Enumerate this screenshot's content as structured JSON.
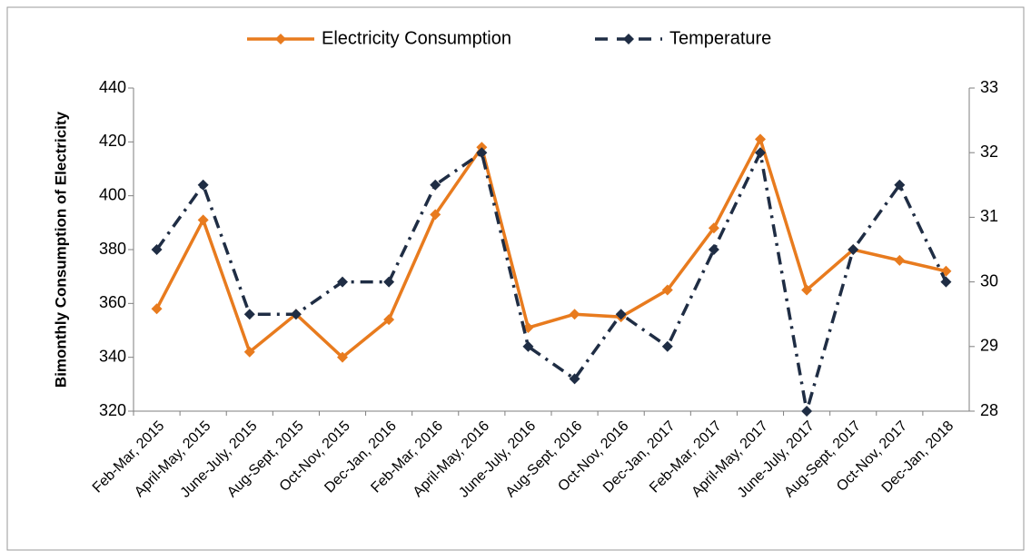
{
  "chart_data": {
    "type": "line",
    "y_label": "Bimonthly Consumption of Electricity",
    "categories": [
      "Feb-Mar, 2015",
      "April-May, 2015",
      "June-July, 2015",
      "Aug-Sept, 2015",
      "Oct-Nov, 2015",
      "Dec-Jan, 2016",
      "Feb-Mar, 2016",
      "April-May, 2016",
      "June-July, 2016",
      "Aug-Sept, 2016",
      "Oct-Nov, 2016",
      "Dec-Jan, 2017",
      "Feb-Mar, 2017",
      "April-May, 2017",
      "June-July, 2017",
      "Aug-Sept, 2017",
      "Oct-Nov, 2017",
      "Dec-Jan, 2018"
    ],
    "series": [
      {
        "name": "Electricity Consumption",
        "color": "#e87b1e",
        "axis": "y",
        "values": [
          358,
          391,
          342,
          356,
          340,
          354,
          393,
          418,
          351,
          356,
          355,
          365,
          388,
          421,
          365,
          380,
          376,
          372
        ]
      },
      {
        "name": "Temperature",
        "color": "#1f2d44",
        "axis": "y2",
        "values": [
          30.5,
          31.5,
          29.5,
          29.5,
          30,
          30,
          31.5,
          32,
          29,
          28.5,
          29.5,
          29,
          30.5,
          32,
          28,
          30.5,
          31.5,
          30
        ]
      }
    ],
    "ylim": [
      320,
      440
    ],
    "yticks": [
      320,
      340,
      360,
      380,
      400,
      420,
      440
    ],
    "y2lim": [
      28,
      33
    ],
    "y2ticks": [
      28,
      29,
      30,
      31,
      32,
      33
    ],
    "legend": "top"
  }
}
